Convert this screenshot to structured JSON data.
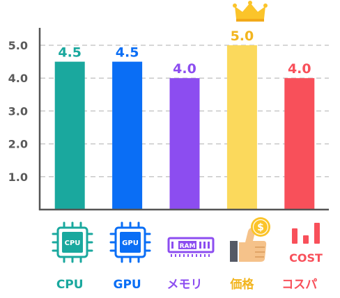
{
  "chart_data": {
    "type": "bar",
    "categories": [
      "CPU",
      "GPU",
      "メモリ",
      "価格",
      "コスパ"
    ],
    "values": [
      4.5,
      4.5,
      4.0,
      5.0,
      4.0
    ],
    "value_labels": [
      "4.5",
      "4.5",
      "4.0",
      "5.0",
      "4.0"
    ],
    "colors": [
      "#1aa89e",
      "#0a6ef5",
      "#8c4df0",
      "#fbd95c",
      "#f8505a"
    ],
    "label_colors": [
      "#1aa89e",
      "#0a6ef5",
      "#8c4df0",
      "#f2b51f",
      "#f8505a"
    ],
    "y_ticks": [
      {
        "value": 1.0,
        "label": "1.0"
      },
      {
        "value": 2.0,
        "label": "2.0"
      },
      {
        "value": 3.0,
        "label": "3.0"
      },
      {
        "value": 4.0,
        "label": "4.0"
      },
      {
        "value": 5.0,
        "label": "5.0"
      }
    ],
    "ylim": [
      0,
      5.0
    ],
    "grid": true,
    "top_category_marker": "crown-icon",
    "category_icons": [
      "cpu-chip-icon",
      "gpu-chip-icon",
      "ram-module-icon",
      "thumbs-up-coin-icon",
      "cost-bars-icon"
    ],
    "icon_texts": {
      "cpu": "CPU",
      "gpu": "GPU",
      "ram": "RAM",
      "coin": "$",
      "cost": "COST"
    }
  }
}
